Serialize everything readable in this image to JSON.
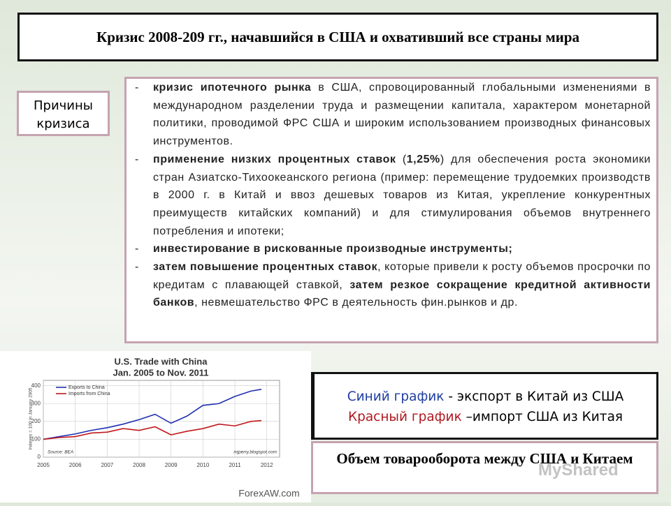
{
  "header": {
    "title": "Кризис 2008-209 гг., начавшийся в США и охвативший все страны мира"
  },
  "side_label": "Причины кризиса",
  "causes": {
    "items": [
      [
        {
          "b": true,
          "t": "кризис ипотечного рынка"
        },
        {
          "b": false,
          "t": " в США, спровоцированный глобальными изменениями в международном разделении труда и размещении капитала, характером монетарной политики, проводимой ФРС США и широким использованием производных финансовых инструментов."
        }
      ],
      [
        {
          "b": true,
          "t": "применение низких процентных ставок"
        },
        {
          "b": false,
          "t": " ("
        },
        {
          "b": true,
          "t": "1,25%"
        },
        {
          "b": false,
          "t": ") для обеспечения роста экономики стран Азиатско-Тихоокеанского региона (пример: перемещение трудоемких производств в 2000 г. в Китай и ввоз дешевых товаров из Китая, укрепление конкурентных преимуществ китайских компаний) и для стимулирования объемов внутреннего потребления и ипотеки;"
        }
      ],
      [
        {
          "b": true,
          "t": "инвестирование в рискованные производные инструменты;"
        }
      ],
      [
        {
          "b": true,
          "t": "затем повышение процентных ставок"
        },
        {
          "b": false,
          "t": ", которые привели к росту объемов просрочки по кредитам с плавающей ставкой, "
        },
        {
          "b": true,
          "t": "затем резкое сокращение кредитной активности банков"
        },
        {
          "b": false,
          "t": ", невмешательство ФРС в деятельность фин.рынков и др."
        }
      ]
    ]
  },
  "legend_box": {
    "line1": {
      "colored": "Синий график",
      "rest": " - экспорт в Китай из США"
    },
    "line2": {
      "colored": "Красный график",
      "rest": " –импорт США из Китая"
    }
  },
  "caption": "Объем товарооборота между США и Китаем",
  "watermark": "MyShared",
  "chart_data": {
    "type": "line",
    "title": "U.S. Trade with China",
    "subtitle": "Jan. 2005 to Nov. 2011",
    "y_label": "Indexes = 100 in January 2005",
    "source": "Source: BEA",
    "credit": "mjperry.blogspot.com",
    "footer": "ForexAW.com",
    "x": [
      2005,
      2005.5,
      2006,
      2006.5,
      2007,
      2007.5,
      2008,
      2008.5,
      2009,
      2009.5,
      2010,
      2010.5,
      2011,
      2011.5,
      2011.83
    ],
    "series": [
      {
        "name": "Exports to China",
        "color": "#1f2fb0",
        "values": [
          100,
          115,
          130,
          150,
          165,
          185,
          210,
          240,
          190,
          230,
          290,
          300,
          340,
          370,
          380
        ]
      },
      {
        "name": "Imports from China",
        "color": "#c0181b",
        "values": [
          100,
          110,
          115,
          135,
          140,
          160,
          150,
          170,
          125,
          145,
          160,
          185,
          175,
          200,
          205
        ]
      }
    ],
    "xlim": [
      2005,
      2012.4
    ],
    "xticks": [
      2005,
      2006,
      2007,
      2008,
      2009,
      2010,
      2011,
      2012
    ],
    "ylim": [
      0,
      430
    ],
    "yticks": [
      0,
      100,
      200,
      300,
      400
    ],
    "grid": true
  }
}
